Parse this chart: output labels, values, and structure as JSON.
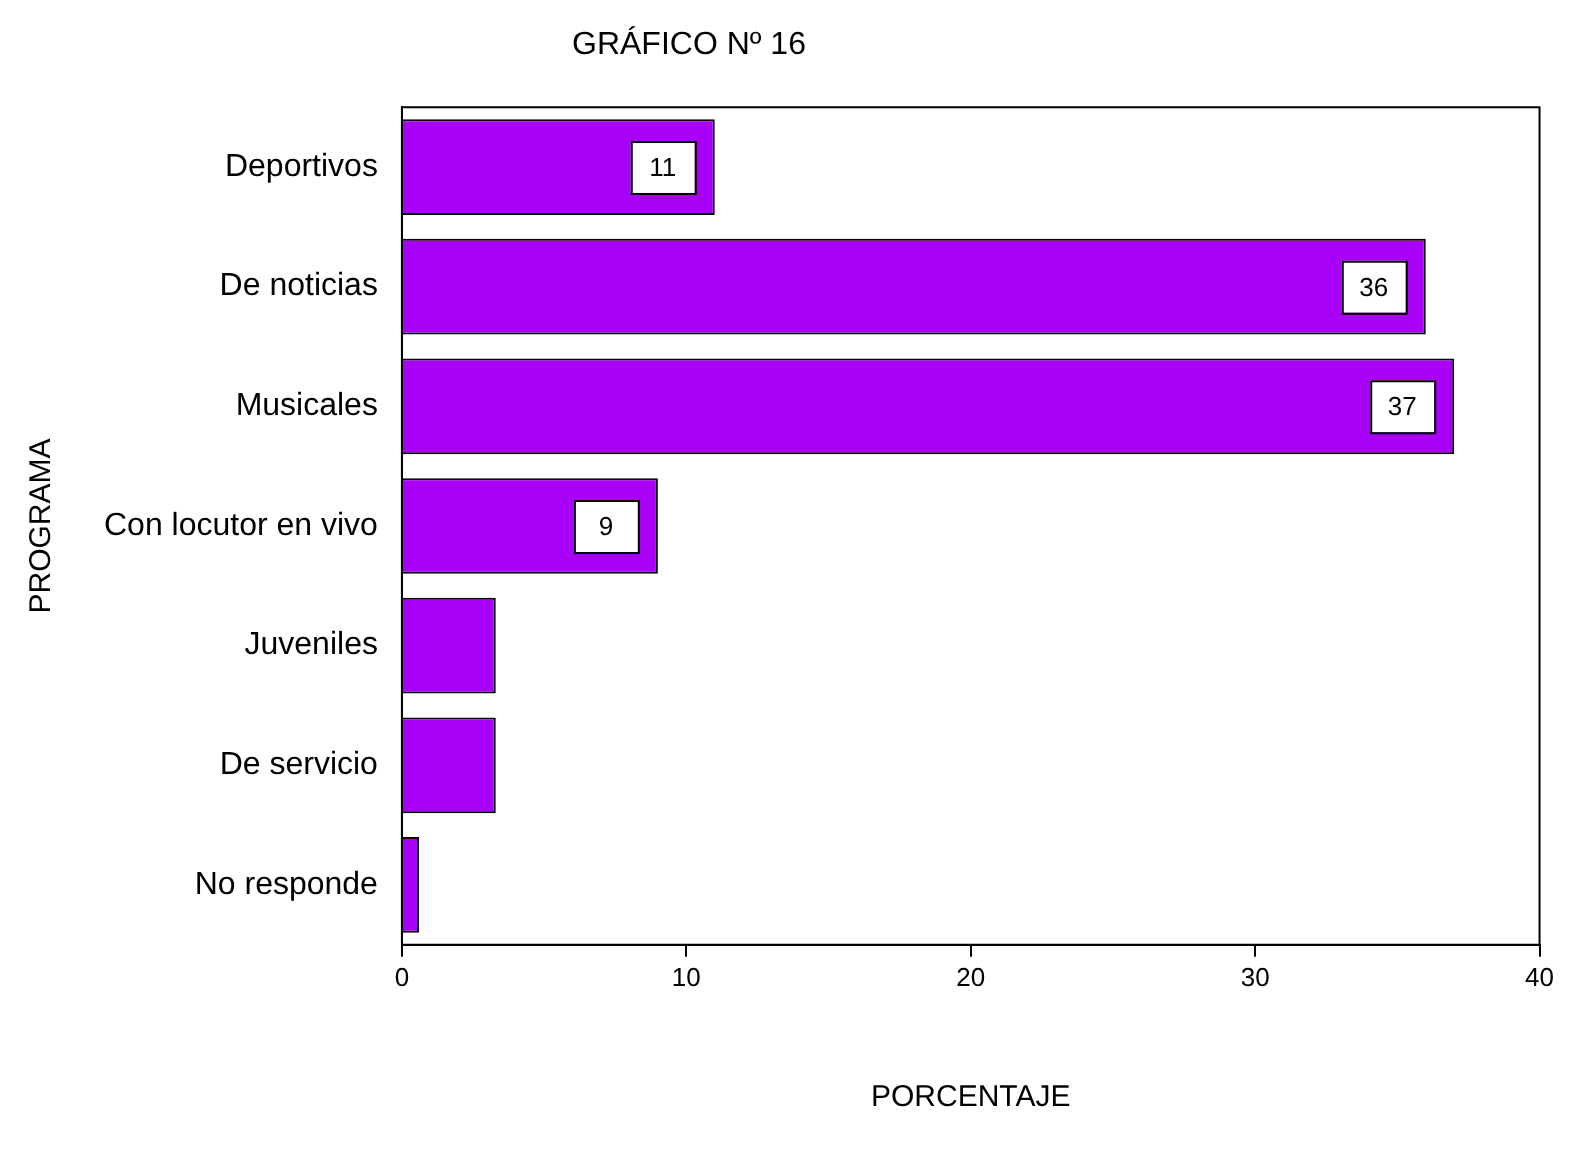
{
  "chart_data": {
    "type": "bar",
    "orientation": "horizontal",
    "title": "GRÁFICO Nº 16",
    "xlabel": "PORCENTAJE",
    "ylabel": "PROGRAMA",
    "categories": [
      "Deportivos",
      "De noticias",
      "Musicales",
      "Con locutor en vivo",
      "Juveniles",
      "De servicio",
      "No responde"
    ],
    "values": [
      11,
      36,
      37,
      9,
      3.3,
      3.3,
      0.6
    ],
    "value_labels": [
      "11",
      "36",
      "37",
      "9",
      null,
      null,
      null
    ],
    "color": "#a800f8",
    "xlim": [
      0,
      40
    ],
    "xticks": [
      0,
      10,
      20,
      30,
      40
    ],
    "grid": false,
    "legend": false
  }
}
